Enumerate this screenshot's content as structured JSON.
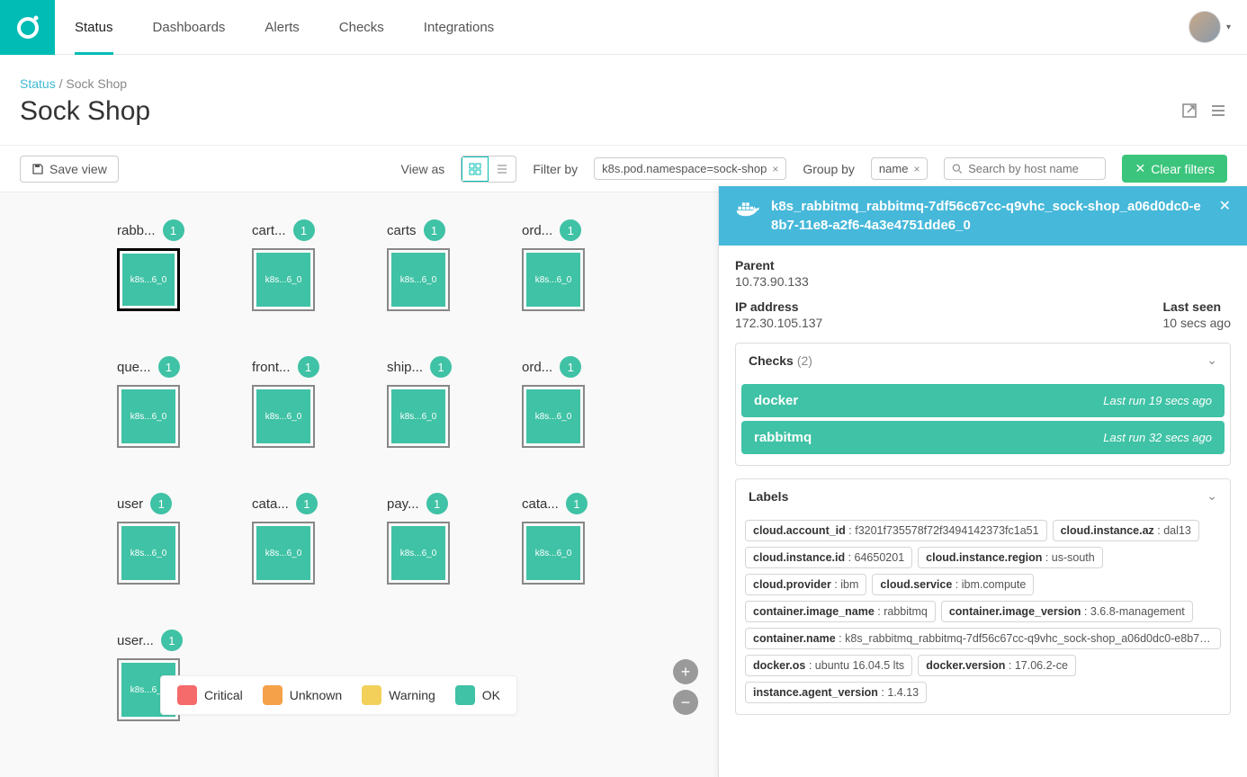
{
  "nav": {
    "items": [
      "Status",
      "Dashboards",
      "Alerts",
      "Checks",
      "Integrations"
    ],
    "active": "Status"
  },
  "breadcrumb": {
    "root": "Status",
    "sep": " / ",
    "leaf": "Sock Shop"
  },
  "page_title": "Sock Shop",
  "toolbar": {
    "save_label": "Save view",
    "view_as_label": "View as",
    "filter_by_label": "Filter by",
    "filter_chip": "k8s.pod.namespace=sock-shop",
    "group_by_label": "Group by",
    "group_chip": "name",
    "search_placeholder": "Search by host name",
    "clear_label": "Clear filters"
  },
  "grid": {
    "box_label": "k8s...6_0",
    "items": [
      {
        "name": "rabb...",
        "count": 1,
        "selected": true
      },
      {
        "name": "cart...",
        "count": 1
      },
      {
        "name": "carts",
        "count": 1
      },
      {
        "name": "ord...",
        "count": 1
      },
      {
        "name": "que...",
        "count": 1
      },
      {
        "name": "front...",
        "count": 1
      },
      {
        "name": "ship...",
        "count": 1
      },
      {
        "name": "ord...",
        "count": 1
      },
      {
        "name": "user",
        "count": 1
      },
      {
        "name": "cata...",
        "count": 1
      },
      {
        "name": "pay...",
        "count": 1
      },
      {
        "name": "cata...",
        "count": 1
      },
      {
        "name": "user...",
        "count": 1
      }
    ]
  },
  "legend": [
    {
      "label": "Critical",
      "color": "#f56a6a"
    },
    {
      "label": "Unknown",
      "color": "#f5a14a"
    },
    {
      "label": "Warning",
      "color": "#f2d05a"
    },
    {
      "label": "OK",
      "color": "#3fc2a5"
    }
  ],
  "panel": {
    "title": "k8s_rabbitmq_rabbitmq-7df56c67cc-q9vhc_sock-shop_a06d0dc0-e8b7-11e8-a2f6-4a3e4751dde6_0",
    "parent_label": "Parent",
    "parent_value": "10.73.90.133",
    "ip_label": "IP address",
    "ip_value": "172.30.105.137",
    "lastseen_label": "Last seen",
    "lastseen_value": "10 secs ago",
    "checks_label": "Checks",
    "checks_count": "(2)",
    "checks": [
      {
        "name": "docker",
        "lastrun": "Last run 19 secs ago"
      },
      {
        "name": "rabbitmq",
        "lastrun": "Last run 32 secs ago"
      }
    ],
    "labels_label": "Labels",
    "labels": [
      {
        "k": "cloud.account_id",
        "v": "f3201f735578f72f3494142373fc1a51"
      },
      {
        "k": "cloud.instance.az",
        "v": "dal13"
      },
      {
        "k": "cloud.instance.id",
        "v": "64650201"
      },
      {
        "k": "cloud.instance.region",
        "v": "us-south"
      },
      {
        "k": "cloud.provider",
        "v": "ibm"
      },
      {
        "k": "cloud.service",
        "v": "ibm.compute"
      },
      {
        "k": "container.image_name",
        "v": "rabbitmq"
      },
      {
        "k": "container.image_version",
        "v": "3.6.8-management"
      },
      {
        "k": "container.name",
        "v": "k8s_rabbitmq_rabbitmq-7df56c67cc-q9vhc_sock-shop_a06d0dc0-e8b7-11e8-a2f6-…"
      },
      {
        "k": "docker.os",
        "v": "ubuntu 16.04.5 lts"
      },
      {
        "k": "docker.version",
        "v": "17.06.2-ce"
      },
      {
        "k": "instance.agent_version",
        "v": "1.4.13"
      }
    ]
  },
  "colors": {
    "teal": "#00bcb4",
    "ok": "#3fc2a5",
    "panel_head": "#46b8da",
    "clear_btn": "#3bc47b"
  }
}
